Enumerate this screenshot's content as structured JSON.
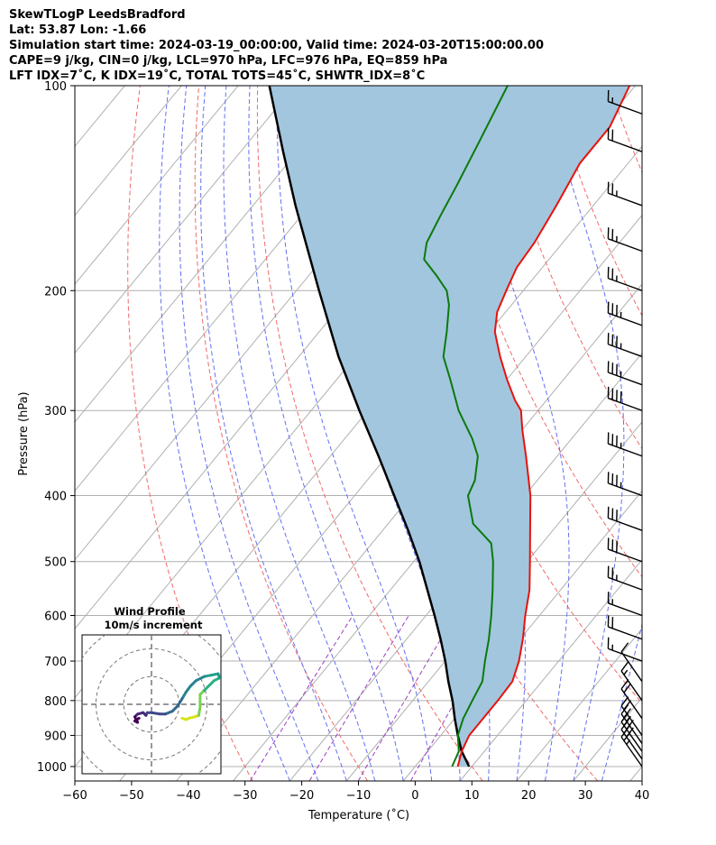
{
  "title_lines": [
    "SkewTLogP LeedsBradford",
    "Lat: 53.87   Lon: -1.66",
    "Simulation start time: 2024-03-19_00:00:00, Valid time: 2024-03-20T15:00:00.00",
    "CAPE=9 j/kg, CIN=0 j/kg, LCL=970 hPa, LFC=976 hPa, EQ=859 hPa",
    "LFT IDX=7˚C, K IDX=19˚C, TOTAL TOTS=45˚C, SHWTR_IDX=8˚C"
  ],
  "chart_data": {
    "type": "line",
    "subtype": "skew-T log-P diagram",
    "xlabel": "Temperature (˚C)",
    "ylabel": "Pressure (hPa)",
    "xlim": [
      -60,
      40
    ],
    "ylim": [
      1050,
      100
    ],
    "yscale": "log",
    "x_ticks": [
      -60,
      -50,
      -40,
      -30,
      -20,
      -10,
      0,
      10,
      20,
      30,
      40
    ],
    "y_ticks": [
      1000,
      900,
      800,
      700,
      600,
      500,
      400,
      300,
      200,
      100
    ],
    "grid": true,
    "shaded_region": "between temperature and parcel profiles",
    "series": [
      {
        "role": "temperature",
        "color": "#e8120c",
        "points": [
          {
            "p": 1000,
            "t": 7.5
          },
          {
            "p": 950,
            "t": 6.0
          },
          {
            "p": 900,
            "t": 5.0
          },
          {
            "p": 850,
            "t": 5.0
          },
          {
            "p": 800,
            "t": 5.0
          },
          {
            "p": 750,
            "t": 4.8
          },
          {
            "p": 700,
            "t": 3.0
          },
          {
            "p": 650,
            "t": 0.5
          },
          {
            "p": 600,
            "t": -2.5
          },
          {
            "p": 550,
            "t": -5.5
          },
          {
            "p": 500,
            "t": -9.5
          },
          {
            "p": 450,
            "t": -14.0
          },
          {
            "p": 400,
            "t": -19.0
          },
          {
            "p": 350,
            "t": -25.5
          },
          {
            "p": 320,
            "t": -30.0
          },
          {
            "p": 300,
            "t": -33.0
          },
          {
            "p": 290,
            "t": -35.5
          },
          {
            "p": 270,
            "t": -40.0
          },
          {
            "p": 250,
            "t": -44.5
          },
          {
            "p": 230,
            "t": -49.0
          },
          {
            "p": 215,
            "t": -51.5
          },
          {
            "p": 200,
            "t": -53.0
          },
          {
            "p": 185,
            "t": -54.5
          },
          {
            "p": 170,
            "t": -55.0
          },
          {
            "p": 150,
            "t": -56.5
          },
          {
            "p": 130,
            "t": -58.5
          },
          {
            "p": 115,
            "t": -58.5
          },
          {
            "p": 100,
            "t": -61.0
          }
        ]
      },
      {
        "role": "dewpoint",
        "color": "#0a7a0a",
        "points": [
          {
            "p": 1000,
            "t": 6.5
          },
          {
            "p": 950,
            "t": 5.5
          },
          {
            "p": 900,
            "t": 3.0
          },
          {
            "p": 850,
            "t": 1.5
          },
          {
            "p": 800,
            "t": 0.5
          },
          {
            "p": 750,
            "t": -0.5
          },
          {
            "p": 700,
            "t": -3.0
          },
          {
            "p": 650,
            "t": -5.5
          },
          {
            "p": 600,
            "t": -8.5
          },
          {
            "p": 550,
            "t": -12.0
          },
          {
            "p": 500,
            "t": -16.0
          },
          {
            "p": 470,
            "t": -19.0
          },
          {
            "p": 440,
            "t": -25.0
          },
          {
            "p": 400,
            "t": -30.0
          },
          {
            "p": 380,
            "t": -31.0
          },
          {
            "p": 350,
            "t": -34.0
          },
          {
            "p": 330,
            "t": -37.5
          },
          {
            "p": 300,
            "t": -44.0
          },
          {
            "p": 270,
            "t": -50.0
          },
          {
            "p": 250,
            "t": -54.5
          },
          {
            "p": 230,
            "t": -57.5
          },
          {
            "p": 210,
            "t": -61.0
          },
          {
            "p": 200,
            "t": -63.5
          },
          {
            "p": 190,
            "t": -67.5
          },
          {
            "p": 180,
            "t": -72.0
          },
          {
            "p": 170,
            "t": -74.0
          },
          {
            "p": 155,
            "t": -75.5
          },
          {
            "p": 140,
            "t": -77.0
          },
          {
            "p": 120,
            "t": -79.5
          },
          {
            "p": 100,
            "t": -82.5
          }
        ]
      },
      {
        "role": "parcel",
        "color": "#000000",
        "points": [
          {
            "p": 1000,
            "t": 9.5
          },
          {
            "p": 950,
            "t": 6.0
          },
          {
            "p": 900,
            "t": 3.0
          },
          {
            "p": 850,
            "t": 0.0
          },
          {
            "p": 800,
            "t": -3.0
          },
          {
            "p": 750,
            "t": -6.5
          },
          {
            "p": 700,
            "t": -10.0
          },
          {
            "p": 650,
            "t": -14.0
          },
          {
            "p": 600,
            "t": -18.5
          },
          {
            "p": 550,
            "t": -23.5
          },
          {
            "p": 500,
            "t": -29.0
          },
          {
            "p": 450,
            "t": -35.5
          },
          {
            "p": 400,
            "t": -43.0
          },
          {
            "p": 350,
            "t": -51.5
          },
          {
            "p": 300,
            "t": -61.5
          },
          {
            "p": 250,
            "t": -73.0
          },
          {
            "p": 200,
            "t": -86.0
          },
          {
            "p": 150,
            "t": -102.5
          },
          {
            "p": 125,
            "t": -112.5
          },
          {
            "p": 100,
            "t": -124.5
          }
        ]
      }
    ],
    "wind_barbs": [
      {
        "p": 1000,
        "speed_kt": 25
      },
      {
        "p": 975,
        "speed_kt": 30
      },
      {
        "p": 950,
        "speed_kt": 30
      },
      {
        "p": 925,
        "speed_kt": 25
      },
      {
        "p": 900,
        "speed_kt": 20
      },
      {
        "p": 850,
        "speed_kt": 20
      },
      {
        "p": 800,
        "speed_kt": 15
      },
      {
        "p": 750,
        "speed_kt": 10
      },
      {
        "p": 700,
        "speed_kt": 15
      },
      {
        "p": 650,
        "speed_kt": 20
      },
      {
        "p": 600,
        "speed_kt": 15
      },
      {
        "p": 550,
        "speed_kt": 25
      },
      {
        "p": 500,
        "speed_kt": 30
      },
      {
        "p": 450,
        "speed_kt": 30
      },
      {
        "p": 400,
        "speed_kt": 35
      },
      {
        "p": 350,
        "speed_kt": 35
      },
      {
        "p": 300,
        "speed_kt": 40
      },
      {
        "p": 275,
        "speed_kt": 35
      },
      {
        "p": 250,
        "speed_kt": 35
      },
      {
        "p": 225,
        "speed_kt": 35
      },
      {
        "p": 200,
        "speed_kt": 25
      },
      {
        "p": 175,
        "speed_kt": 25
      },
      {
        "p": 150,
        "speed_kt": 25
      },
      {
        "p": 125,
        "speed_kt": 20
      },
      {
        "p": 110,
        "speed_kt": 15
      }
    ],
    "hodograph": {
      "title_lines": [
        "Wind Profile",
        "10m/s increment"
      ],
      "rings_ms": [
        10,
        20,
        30
      ],
      "range_ms": 25,
      "path": [
        {
          "u": 11.0,
          "v": -5.0
        },
        {
          "u": 12.5,
          "v": -5.5
        },
        {
          "u": 13.5,
          "v": -5.0
        },
        {
          "u": 15.5,
          "v": -4.5
        },
        {
          "u": 17.0,
          "v": -4.0
        },
        {
          "u": 17.5,
          "v": -1.0
        },
        {
          "u": 17.5,
          "v": 3.5
        },
        {
          "u": 19.0,
          "v": 5.0
        },
        {
          "u": 20.5,
          "v": 6.5
        },
        {
          "u": 21.5,
          "v": 7.5
        },
        {
          "u": 22.5,
          "v": 8.5
        },
        {
          "u": 24.5,
          "v": 9.5
        },
        {
          "u": 24.0,
          "v": 11.0
        },
        {
          "u": 21.5,
          "v": 10.5
        },
        {
          "u": 19.0,
          "v": 10.0
        },
        {
          "u": 16.0,
          "v": 8.5
        },
        {
          "u": 14.0,
          "v": 6.5
        },
        {
          "u": 12.5,
          "v": 4.5
        },
        {
          "u": 11.0,
          "v": 2.0
        },
        {
          "u": 9.5,
          "v": -0.5
        },
        {
          "u": 7.5,
          "v": -2.5
        },
        {
          "u": 5.0,
          "v": -3.5
        },
        {
          "u": 3.0,
          "v": -3.5
        },
        {
          "u": 0.0,
          "v": -3.0
        },
        {
          "u": -1.5,
          "v": -3.0
        },
        {
          "u": -2.0,
          "v": -4.0
        },
        {
          "u": -3.0,
          "v": -3.0
        },
        {
          "u": -5.0,
          "v": -3.5
        },
        {
          "u": -6.0,
          "v": -4.5
        },
        {
          "u": -5.0,
          "v": -6.5
        },
        {
          "u": -6.0,
          "v": -6.0
        },
        {
          "u": -4.5,
          "v": -5.0
        }
      ]
    }
  },
  "colors": {
    "temperature": "#e8120c",
    "dewpoint": "#0a7a0a",
    "parcel": "#000000",
    "cape_fill": "#a2c6de",
    "isotherm_grid": "#b0b0b0",
    "dry_adiabat": "#f06a6a",
    "moist_adiabat": "#6470f0",
    "mixing_ratio": "#9b3fc0"
  }
}
